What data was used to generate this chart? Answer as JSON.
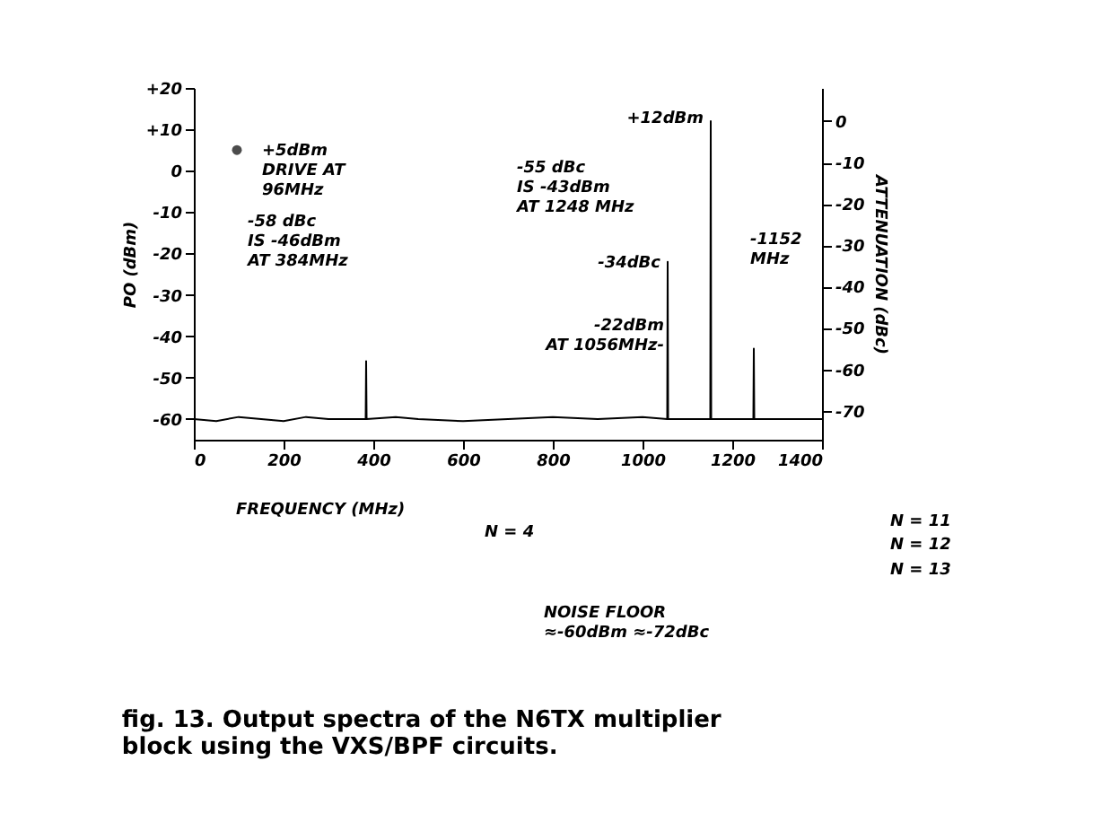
{
  "chart_data": {
    "type": "line",
    "title": "fig. 13. Output spectra of the N6TX multiplier block using the VXS/BPF circuits.",
    "xlabel": "FREQUENCY (MHz)",
    "ylabel": "PO (dBm)",
    "y2label": "ATTENUATION (dBc)",
    "xlim": [
      0,
      1400
    ],
    "xticks": [
      0,
      200,
      400,
      600,
      800,
      1000,
      1200,
      1400
    ],
    "ylim": [
      -65,
      20
    ],
    "yticks": [
      {
        "value": 20,
        "label": "+20"
      },
      {
        "value": 10,
        "label": "+10"
      },
      0,
      -10,
      -20,
      -30,
      -40,
      -50,
      -60
    ],
    "y2lim": [
      -77,
      8
    ],
    "y2ticks": [
      0,
      -10,
      -20,
      -30,
      -40,
      -50,
      -60,
      -70
    ],
    "grid": false,
    "line_style": "solid",
    "series": [
      {
        "color": "#000000",
        "marker": "none",
        "x": [
          0,
          50,
          100,
          150,
          200,
          250,
          300,
          383,
          384,
          385,
          450,
          500,
          600,
          700,
          800,
          900,
          1000,
          1055,
          1056,
          1057,
          1100,
          1151,
          1152,
          1153,
          1200,
          1247,
          1248,
          1249,
          1300,
          1400
        ],
        "values": [
          -60,
          -60.5,
          -59.5,
          -60,
          -60.5,
          -59.5,
          -60,
          -60,
          -46,
          -60,
          -59.5,
          -60,
          -60.5,
          -60,
          -59.5,
          -60,
          -59.5,
          -60,
          -22,
          -60,
          -60,
          -60,
          12,
          -60,
          -60,
          -60,
          -43,
          -60,
          -60,
          -60
        ]
      },
      {
        "type": "scatter",
        "color": "#000000",
        "marker": "circle",
        "x": [
          96
        ],
        "values": [
          5
        ]
      }
    ],
    "annotations": [
      {
        "text": "+5dBm\nDRIVE AT\n96MHz",
        "x": 96,
        "y": 5
      },
      {
        "text": "+12dBm",
        "x": 1152,
        "y": 12
      },
      {
        "text": "-34dBc",
        "x": 1056,
        "y": -22
      },
      "-58 dBc\nIS -46dBm\nAT 384MHz",
      "-55 dBc\nIS -43dBm\nAT 1248 MHz",
      "-1152\nMHz",
      "-22dBm\nAT 1056MHz-",
      "N = 4",
      "N = 11",
      "N = 12",
      "N = 13",
      "NOISE FLOOR\n≈-60dBm ≈-72dBc"
    ]
  }
}
